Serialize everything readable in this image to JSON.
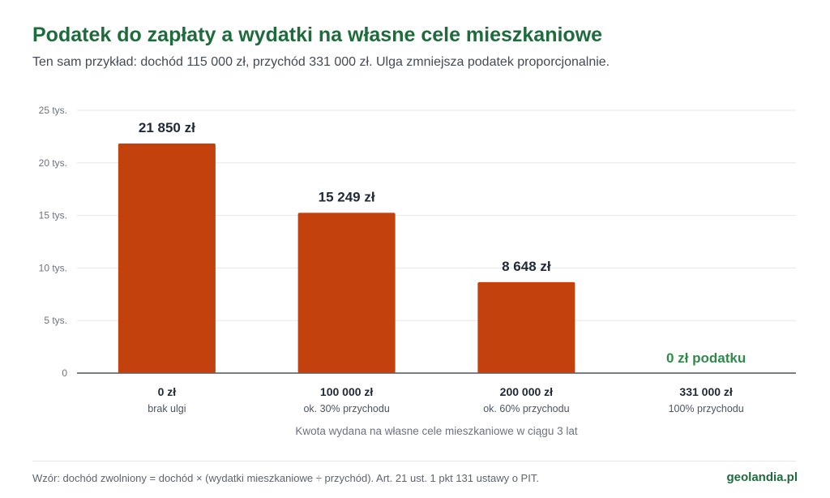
{
  "header": {
    "title": "Podatek do zapłaty a wydatki na własne cele mieszkaniowe",
    "subtitle": "Ten sam przykład: dochód 115 000 zł, przychód 331 000 zł. Ulga zmniejsza podatek proporcjonalnie."
  },
  "chart_data": {
    "type": "bar",
    "categories": [
      "0 zł",
      "100 000 zł",
      "200 000 zł",
      "331 000 zł"
    ],
    "category_sublabels": [
      "brak ulgi",
      "ok. 30% przychodu",
      "ok. 60% przychodu",
      "100% przychodu"
    ],
    "values": [
      21850,
      15249,
      8648,
      0
    ],
    "value_labels": [
      "21 850 zł",
      "15 249 zł",
      "8 648 zł",
      "0 zł podatku"
    ],
    "ylim": [
      0,
      25000
    ],
    "yticks": [
      0,
      5000,
      10000,
      15000,
      20000,
      25000
    ],
    "ytick_labels": [
      "0",
      "5 tys.",
      "10 tys.",
      "15 tys.",
      "20 tys.",
      "25 tys."
    ],
    "xlabel": "Kwota wydana na własne cele mieszkaniowe w ciągu 3 lat",
    "ylabel": "",
    "grid": true,
    "colors": {
      "bar": "#c2410c",
      "zero_label": "#2e8b4a",
      "grid": "#e5e7eb",
      "axis": "#4b5563"
    }
  },
  "footer": {
    "note": "Wzór: dochód zwolniony = dochód × (wydatki mieszkaniowe ÷ przychód). Art. 21 ust. 1 pkt 131 ustawy o PIT.",
    "brand": "geolandia.pl"
  }
}
